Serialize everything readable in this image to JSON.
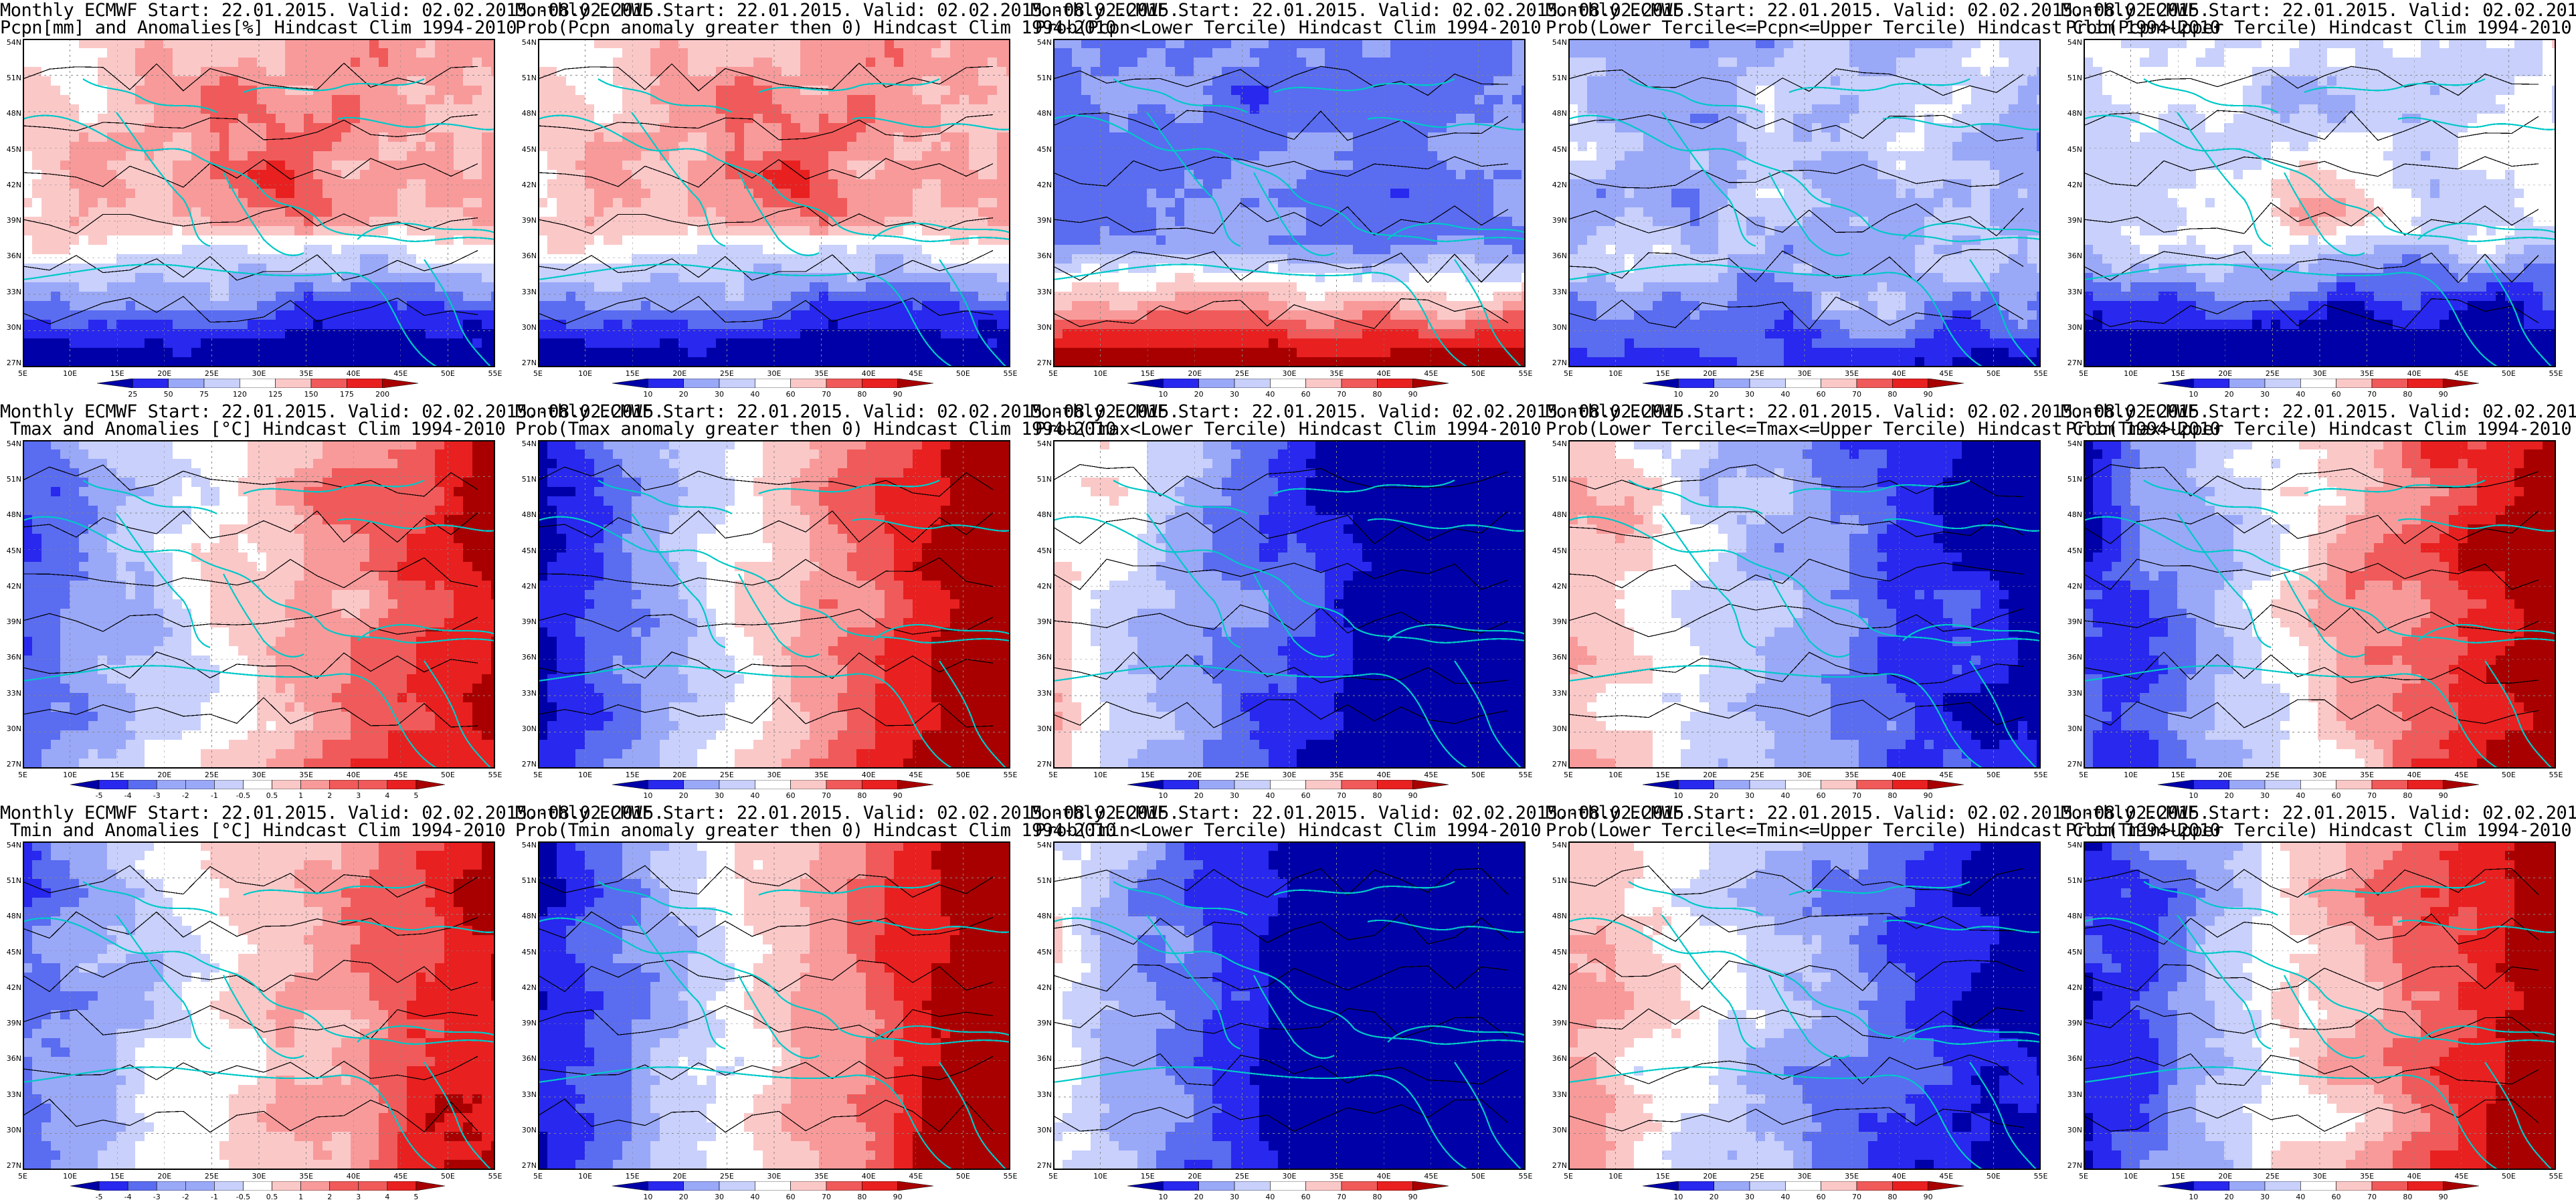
{
  "header_line": "Monthly ECMWF Start: 22.01.2015. Valid: 02.02.2015.-08.02.2015.",
  "lat_labels": [
    "54N",
    "51N",
    "48N",
    "45N",
    "42N",
    "39N",
    "36N",
    "33N",
    "30N",
    "27N"
  ],
  "lon_labels": [
    "5E",
    "10E",
    "15E",
    "20E",
    "25E",
    "30E",
    "35E",
    "40E",
    "45E",
    "50E",
    "55E"
  ],
  "colors": {
    "blue_dark": "#0000a8",
    "blue": "#2828ee",
    "blue_mid": "#5a6cf0",
    "blue_light": "#9aa8f8",
    "blue_pale": "#c8d0fb",
    "white": "#ffffff",
    "red_pale": "#fbc8c8",
    "red_light": "#f89a9a",
    "red_mid": "#f05a5a",
    "red": "#e82020",
    "red_dark": "#a80000",
    "coast": "#00c8c8",
    "contour": "#000000"
  },
  "scales": {
    "pcpn": [
      "25",
      "50",
      "75",
      "120",
      "125",
      "150",
      "175",
      "200"
    ],
    "temp": [
      "-5",
      "-4",
      "-3",
      "-2",
      "-1",
      "-0.5",
      "0.5",
      "1",
      "2",
      "3",
      "4",
      "5"
    ],
    "prob": [
      "10",
      "20",
      "30",
      "40",
      "60",
      "70",
      "80",
      "90"
    ]
  },
  "panels": [
    {
      "row": 0,
      "col": 0,
      "title2": "Pcpn[mm] and Anomalies[%] Hindcast Clim 1994-2010",
      "scale": "pcpn",
      "pattern": "pcpn_anom"
    },
    {
      "row": 0,
      "col": 1,
      "title2": "Prob(Pcpn anomaly greater then 0) Hindcast Clim 1994-2010",
      "scale": "prob",
      "pattern": "pcpn_anom"
    },
    {
      "row": 0,
      "col": 2,
      "title2": "Prob(Pcpn<Lower Tercile) Hindcast Clim 1994-2010",
      "scale": "prob",
      "pattern": "pcpn_lower"
    },
    {
      "row": 0,
      "col": 3,
      "title2": "Prob(Lower Tercile<=Pcpn<=Upper Tercile) Hindcast Clim 1994-2010",
      "scale": "prob",
      "pattern": "pcpn_middle"
    },
    {
      "row": 0,
      "col": 4,
      "title2": "Prob(Pcpn>Upper Tercile) Hindcast Clim 1994-2010",
      "scale": "prob",
      "pattern": "pcpn_upper"
    },
    {
      "row": 1,
      "col": 0,
      "title2": "Tmax and Anomalies [°C] Hindcast Clim 1994-2010",
      "scale": "temp",
      "pattern": "temp_anom"
    },
    {
      "row": 1,
      "col": 1,
      "title2": "Prob(Tmax anomaly greater then 0) Hindcast Clim 1994-2010",
      "scale": "prob",
      "pattern": "temp_prob"
    },
    {
      "row": 1,
      "col": 2,
      "title2": "Prob(Tmax<Lower Tercile) Hindcast Clim 1994-2010",
      "scale": "prob",
      "pattern": "temp_lower"
    },
    {
      "row": 1,
      "col": 3,
      "title2": "Prob(Lower Tercile<=Tmax<=Upper Tercile) Hindcast Clim 1994-2010",
      "scale": "prob",
      "pattern": "temp_middle"
    },
    {
      "row": 1,
      "col": 4,
      "title2": "Prob(Tmax>Upper Tercile) Hindcast Clim 1994-2010",
      "scale": "prob",
      "pattern": "temp_upper"
    },
    {
      "row": 2,
      "col": 0,
      "title2": "Tmin and Anomalies [°C] Hindcast Clim 1994-2010",
      "scale": "temp",
      "pattern": "temp_anom"
    },
    {
      "row": 2,
      "col": 1,
      "title2": "Prob(Tmin anomaly greater then 0) Hindcast Clim 1994-2010",
      "scale": "prob",
      "pattern": "temp_prob"
    },
    {
      "row": 2,
      "col": 2,
      "title2": "Prob(Tmin<Lower Tercile) Hindcast Clim 1994-2010",
      "scale": "prob",
      "pattern": "tmin_lower"
    },
    {
      "row": 2,
      "col": 3,
      "title2": "Prob(Lower Tercile<=Tmin<=Upper Tercile) Hindcast Clim 1994-2010",
      "scale": "prob",
      "pattern": "temp_middle"
    },
    {
      "row": 2,
      "col": 4,
      "title2": "Prob(Tmin>Upper Tercile) Hindcast Clim 1994-2010",
      "scale": "prob",
      "pattern": "temp_upper"
    }
  ]
}
